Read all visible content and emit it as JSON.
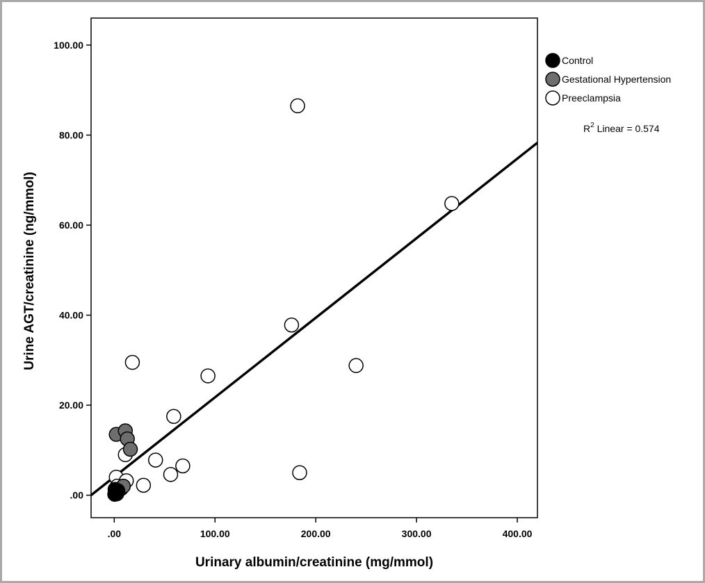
{
  "chart_data": {
    "type": "scatter",
    "xlabel": "Urinary albumin/creatinine (mg/mmol)",
    "ylabel": "Urine AGT/creatinine (ng/mmol)",
    "xlim": [
      -23,
      420
    ],
    "ylim": [
      -5,
      106
    ],
    "xticks": [
      0,
      100,
      200,
      300,
      400
    ],
    "xtick_labels": [
      ".00",
      "100.00",
      "200.00",
      "300.00",
      "400.00"
    ],
    "yticks": [
      0,
      20,
      40,
      60,
      80,
      100
    ],
    "ytick_labels": [
      ".00",
      "20.00",
      "40.00",
      "60.00",
      "80.00",
      "100.00"
    ],
    "grid": false,
    "legend_position": "top-right",
    "series": [
      {
        "name": "Control",
        "color": "#000000",
        "points": [
          [
            0.5,
            0.2
          ],
          [
            1.5,
            0.6
          ],
          [
            2.5,
            0.3
          ],
          [
            3.5,
            1.0
          ],
          [
            0.8,
            1.3
          ]
        ]
      },
      {
        "name": "Gestational Hypertension",
        "color": "#6e6e6e",
        "points": [
          [
            2,
            13.5
          ],
          [
            11,
            14.3
          ],
          [
            13,
            12.5
          ],
          [
            16,
            10.2
          ],
          [
            7,
            1.5
          ],
          [
            9,
            2.0
          ]
        ]
      },
      {
        "name": "Preeclampsia",
        "color": "#ffffff",
        "points": [
          [
            182,
            86.5
          ],
          [
            335,
            64.8
          ],
          [
            176,
            37.8
          ],
          [
            18,
            29.5
          ],
          [
            240,
            28.8
          ],
          [
            93,
            26.5
          ],
          [
            59,
            17.5
          ],
          [
            11,
            9.0
          ],
          [
            41,
            7.8
          ],
          [
            68,
            6.5
          ],
          [
            56,
            4.6
          ],
          [
            184,
            5.0
          ],
          [
            2,
            4.0
          ],
          [
            12,
            3.2
          ],
          [
            29,
            2.2
          ],
          [
            3,
            2.0
          ]
        ]
      }
    ],
    "fit_line": {
      "type": "linear",
      "label_prefix": "R",
      "label_superscript": "2",
      "label_suffix": " Linear = 0.574",
      "start": [
        -23,
        0
      ],
      "end": [
        420,
        78.3
      ]
    }
  }
}
